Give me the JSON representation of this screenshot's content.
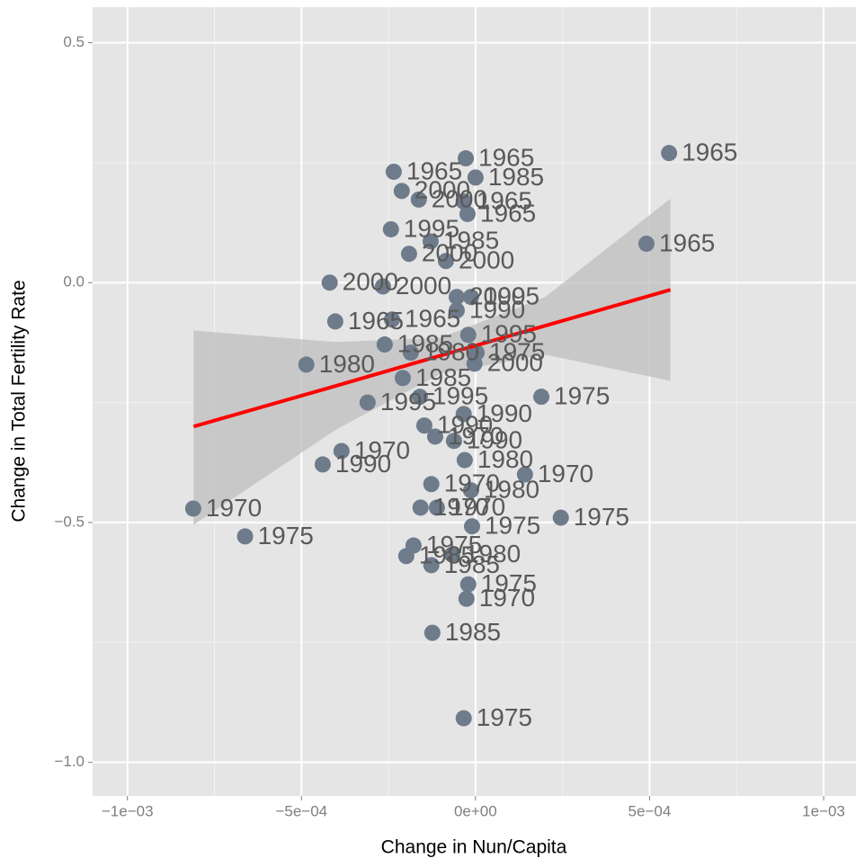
{
  "chart_data": {
    "type": "scatter",
    "x_label": "Change in Nun/Capita",
    "y_label": "Change in Total Fertility Rate",
    "xlim": [
      -0.0011,
      0.001093
    ],
    "ylim": [
      -1.07,
      0.574
    ],
    "xticks": [
      {
        "value": -0.001,
        "label": "−1e−03"
      },
      {
        "value": -0.0005,
        "label": "−5e−04"
      },
      {
        "value": 0,
        "label": "0e+00"
      },
      {
        "value": 0.0005,
        "label": "5e−04"
      },
      {
        "value": 0.001,
        "label": "1e−03"
      }
    ],
    "yticks": [
      {
        "value": 0.5,
        "label": "0.5"
      },
      {
        "value": 0,
        "label": "0.0"
      },
      {
        "value": -0.5,
        "label": "−0.5"
      },
      {
        "value": -1,
        "label": "−1.0"
      }
    ],
    "minor_xticks": [
      -0.00075,
      -0.00025,
      0.00025,
      0.00075
    ],
    "minor_yticks": [
      0.25,
      -0.25,
      -0.75
    ],
    "grid": true,
    "point_color": "#6e7b8b",
    "label_color": "#595959",
    "series": [
      {
        "x": [
          0.000556,
          0.000491,
          -0.000811,
          -0.000662,
          -0.000486,
          -0.000419,
          -0.000403,
          -0.000439,
          -0.000385,
          -0.00031,
          0.000189,
          0.000245,
          0.000142,
          -3.4e-05,
          -0.000124,
          -2.6e-05,
          -2.1e-05,
          -0.000235,
          -0.000212,
          -0.000163,
          -2.8e-05,
          0,
          -0.000243,
          -3.4e-05,
          -2.3e-05,
          -0.000191,
          -0.000129,
          -8.5e-05,
          -0.000266,
          -0.00024,
          -0.000261,
          -0.000186,
          -0.000209,
          -0.00016,
          -0.000147,
          -0.000116,
          -6.2e-05,
          -3.4e-05,
          -3.1e-05,
          -0.000158,
          -0.000111,
          -0.000127,
          -1.3e-05,
          -1e-05,
          -0.000178,
          -0.000199,
          -0.000127,
          -6.7e-05,
          -2.1e-05,
          -3e-06,
          3e-06,
          -5.4e-05,
          -1.3e-05,
          -5.4e-05
        ],
        "y": [
          0.27,
          0.081,
          -0.471,
          -0.529,
          -0.171,
          0,
          -0.081,
          -0.379,
          -0.351,
          -0.25,
          -0.238,
          -0.49,
          -0.4,
          -0.908,
          -0.73,
          -0.659,
          -0.629,
          0.231,
          0.191,
          0.173,
          0.259,
          0.219,
          0.111,
          0.169,
          0.143,
          0.06,
          0.086,
          0.045,
          -0.008,
          -0.077,
          -0.129,
          -0.146,
          -0.199,
          -0.238,
          -0.298,
          -0.321,
          -0.33,
          -0.274,
          -0.37,
          -0.469,
          -0.469,
          -0.42,
          -0.433,
          -0.508,
          -0.548,
          -0.57,
          -0.589,
          -0.567,
          -0.109,
          -0.169,
          -0.146,
          -0.058,
          -0.03,
          -0.03
        ],
        "labels": [
          "1965",
          "1965",
          "1970",
          "1975",
          "1980",
          "2000",
          "1965",
          "1990",
          "1970",
          "1995",
          "1975",
          "1975",
          "1970",
          "1975",
          "1985",
          "1970",
          "1975",
          "1965",
          "2000",
          "2000",
          "1965",
          "1985",
          "1995",
          "1965",
          "1965",
          "2000",
          "1985",
          "2000",
          "2000",
          "1965",
          "1985",
          "1980",
          "1985",
          "1995",
          "1990",
          "1970",
          "1990",
          "1990",
          "1980",
          "1970",
          "1970",
          "1970",
          "1980",
          "1975",
          "1975",
          "1985",
          "1985",
          "1980",
          "1995",
          "2000",
          "1975",
          "1990",
          "1995",
          "2000"
        ]
      }
    ],
    "fit": {
      "color": "#ff0000",
      "band_color": "#bdbdbd",
      "x": [
        -0.00081,
        -0.0004,
        -0.0001,
        0.0002,
        0.00056
      ],
      "y": [
        -0.3,
        -0.215,
        -0.152,
        -0.09,
        -0.015
      ],
      "ymin": [
        -0.505,
        -0.306,
        -0.19,
        -0.15,
        -0.205
      ],
      "ymax": [
        -0.1,
        -0.124,
        -0.115,
        -0.03,
        0.175
      ]
    }
  }
}
